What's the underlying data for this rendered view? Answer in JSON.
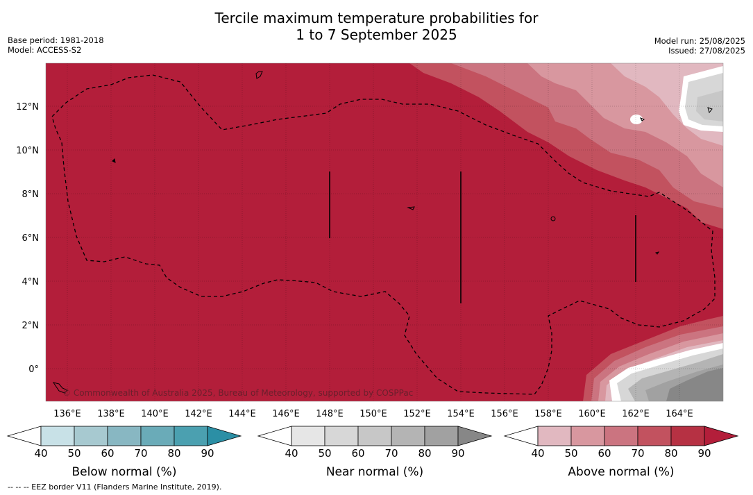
{
  "title_line1": "Tercile maximum temperature probabilities for",
  "title_line2": "1 to 7 September 2025",
  "meta_left": {
    "base_period": "Base period: 1981-2018",
    "model": "Model: ACCESS-S2"
  },
  "meta_right": {
    "model_run": "Model run: 25/08/2025",
    "issued": "Issued: 27/08/2025"
  },
  "map": {
    "background_color": "#b31e3a",
    "lat_labels": [
      "12°N",
      "10°N",
      "8°N",
      "6°N",
      "4°N",
      "2°N",
      "0°"
    ],
    "lon_labels": [
      "136°E",
      "138°E",
      "140°E",
      "142°E",
      "144°E",
      "146°E",
      "148°E",
      "150°E",
      "152°E",
      "154°E",
      "156°E",
      "158°E",
      "160°E",
      "162°E",
      "164°E"
    ],
    "copyright": "© Commonwealth of Australia 2025, Bureau of Meteorology, supported by COSPPac"
  },
  "colorbars": [
    {
      "title": "Below normal (%)",
      "ticks": [
        "40",
        "50",
        "60",
        "70",
        "80",
        "90"
      ],
      "colors": [
        "#ffffff",
        "#c8e1e7",
        "#a7c9d0",
        "#88b7c2",
        "#6aabb8",
        "#4ba0b0",
        "#2b8fa5"
      ]
    },
    {
      "title": "Near normal (%)",
      "ticks": [
        "40",
        "50",
        "60",
        "70",
        "80",
        "90"
      ],
      "colors": [
        "#ffffff",
        "#e6e6e6",
        "#d7d7d7",
        "#c7c7c7",
        "#b4b4b4",
        "#a1a1a1",
        "#878787"
      ]
    },
    {
      "title": "Above normal (%)",
      "ticks": [
        "40",
        "50",
        "60",
        "70",
        "80",
        "90"
      ],
      "colors": [
        "#ffffff",
        "#e1b8c0",
        "#d8979f",
        "#cb7480",
        "#c2525f",
        "#b63143",
        "#b31e3a"
      ]
    }
  ],
  "footer": "--  --  -- EEZ border V11 (Flanders Marine Institute, 2019)."
}
